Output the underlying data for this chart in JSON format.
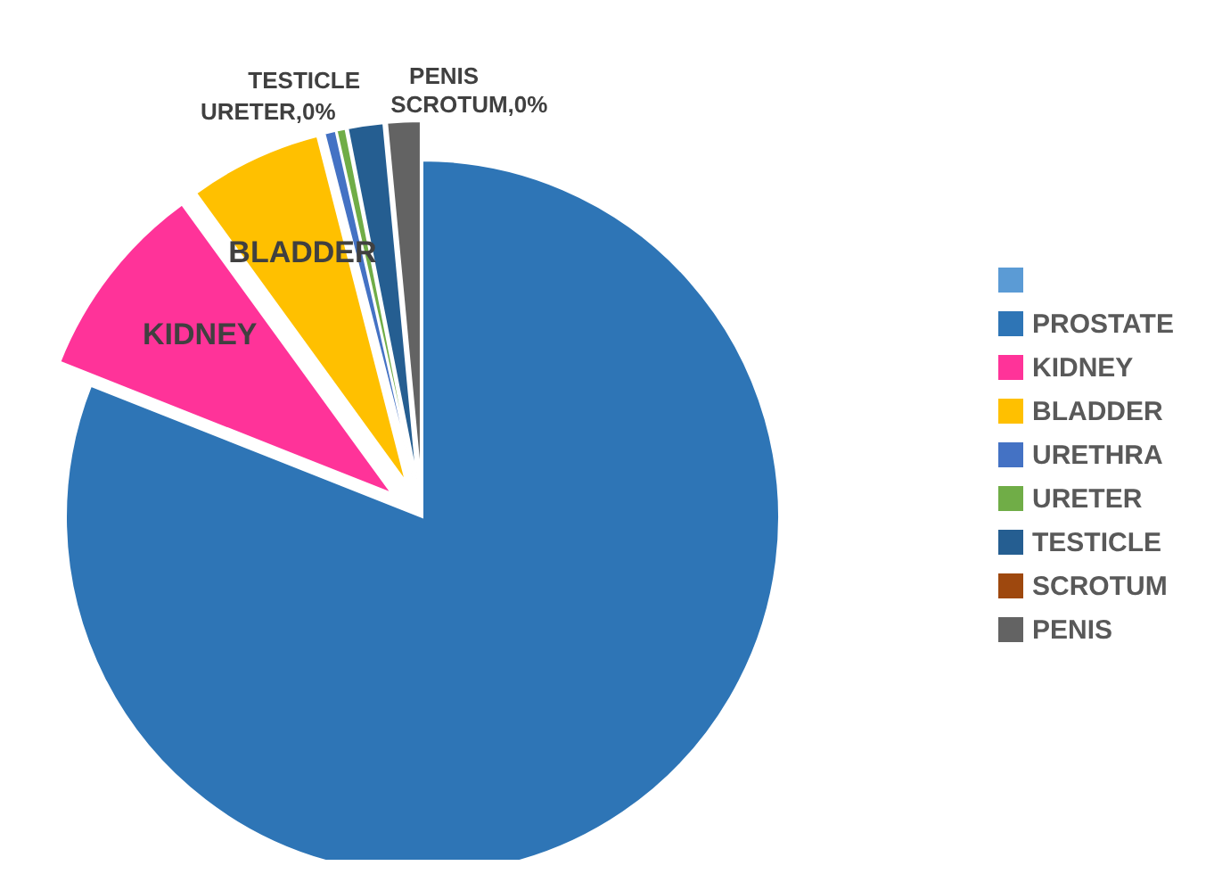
{
  "chart_data": {
    "type": "pie",
    "categories": [
      null,
      "PROSTATE",
      "KIDNEY",
      "BLADDER",
      "URETHRA",
      "URETER",
      "TESTICLE",
      "SCROTUM",
      "PENIS"
    ],
    "values": [
      0,
      81,
      9,
      6,
      0.5,
      0.4,
      1.6,
      0,
      1.5
    ],
    "colors": [
      "#5b9bd5",
      "#2e75b6",
      "#ff3399",
      "#ffc000",
      "#4472c4",
      "#70ad47",
      "#255e91",
      "#9e480e",
      "#636363"
    ],
    "value_labels": [
      null,
      null,
      "KIDNEY",
      "BLADDER",
      null,
      "URETER,0%",
      "TESTICLE",
      "SCROTUM,0%",
      "PENIS"
    ],
    "legend": "right"
  }
}
